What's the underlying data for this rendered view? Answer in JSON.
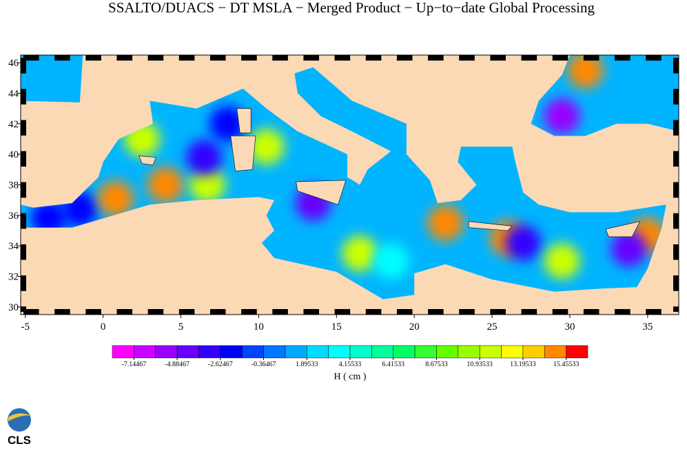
{
  "title": "SSALTO/DUACS − DT MSLA − Merged Product − Up−to−date Global Processing",
  "map": {
    "type": "heatmap",
    "xlim": [
      -5.3,
      37
    ],
    "ylim": [
      29.5,
      46.5
    ],
    "xticks": [
      -5,
      0,
      5,
      10,
      15,
      20,
      25,
      30,
      35
    ],
    "yticks": [
      30,
      32,
      34,
      36,
      38,
      40,
      42,
      44,
      46
    ],
    "anomalies": {
      "lon": [
        -1.5,
        0.8,
        4,
        6.7,
        2.5,
        6.5,
        8,
        10.5,
        13.5,
        16.5,
        22,
        26,
        29.5,
        31,
        35,
        33.8,
        27,
        18.5,
        29.5,
        -3.5
      ],
      "lat": [
        36.4,
        37.1,
        38,
        38,
        41,
        39.8,
        42,
        40.5,
        36.8,
        33.5,
        35.5,
        34.5,
        42.5,
        45.5,
        34.7,
        33.8,
        34.2,
        33,
        33,
        35.8
      ],
      "values": [
        -2,
        15,
        15,
        12,
        12,
        -3,
        -2,
        11,
        -4,
        11,
        15,
        15,
        -5,
        15,
        15,
        -4,
        -3,
        4,
        12,
        -2
      ]
    }
  },
  "colorbar": {
    "lim": [
      -8.27467,
      16.58533
    ],
    "colors": [
      "#ff00ff",
      "#cc00ff",
      "#9900ff",
      "#6600ff",
      "#3300ff",
      "#0000ff",
      "#0044ff",
      "#0077ff",
      "#00aaff",
      "#00ddff",
      "#00ffff",
      "#00ffcc",
      "#00ff99",
      "#00ff66",
      "#33ff33",
      "#66ff00",
      "#99ff00",
      "#ccff00",
      "#ffff00",
      "#ffcc00",
      "#ff8800",
      "#ff0000"
    ],
    "ticks": [
      -7.14467,
      -4.88467,
      -2.62467,
      -0.36467,
      1.89533,
      4.15533,
      6.41533,
      8.67533,
      10.93533,
      13.19533,
      15.45533
    ],
    "label": "H ( cm )"
  },
  "logo": "CLS"
}
